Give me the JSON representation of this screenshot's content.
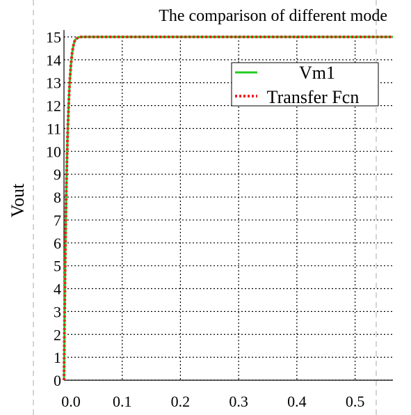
{
  "chart_data": {
    "type": "line",
    "title": "The comparison of different mode",
    "xlabel": "",
    "ylabel": "Vout",
    "xlim": [
      0,
      0.565
    ],
    "ylim": [
      0,
      15
    ],
    "x_ticks": [
      "0.0",
      "0.1",
      "0.2",
      "0.3",
      "0.4",
      "0.5"
    ],
    "x_tick_values": [
      0,
      0.1,
      0.2,
      0.3,
      0.4,
      0.5
    ],
    "y_ticks": [
      "0",
      "1",
      "2",
      "3",
      "4",
      "5",
      "6",
      "7",
      "8",
      "9",
      "10",
      "11",
      "12",
      "13",
      "14",
      "15"
    ],
    "y_tick_values": [
      0,
      1,
      2,
      3,
      4,
      5,
      6,
      7,
      8,
      9,
      10,
      11,
      12,
      13,
      14,
      15
    ],
    "grid": true,
    "legend_position": "top-right",
    "series": [
      {
        "name": "Vm1",
        "color": "#22cc22",
        "style": "solid",
        "x": [
          0,
          0.001,
          0.002,
          0.003,
          0.004,
          0.005,
          0.006,
          0.007,
          0.008,
          0.009,
          0.01,
          0.012,
          0.014,
          0.016,
          0.018,
          0.02,
          0.025,
          0.03,
          0.05,
          0.1,
          0.2,
          0.3,
          0.4,
          0.5,
          0.565
        ],
        "y": [
          0,
          2.8,
          5.0,
          6.8,
          8.3,
          9.5,
          10.5,
          11.3,
          12.0,
          12.6,
          13.1,
          13.8,
          14.3,
          14.6,
          14.8,
          14.9,
          14.98,
          15.0,
          15.0,
          15.0,
          15.0,
          15.0,
          15.0,
          15.0,
          15.0
        ]
      },
      {
        "name": "Transfer Fcn",
        "color": "#ee2222",
        "style": "dotted",
        "x": [
          0,
          0.001,
          0.002,
          0.003,
          0.004,
          0.005,
          0.006,
          0.007,
          0.008,
          0.009,
          0.01,
          0.012,
          0.014,
          0.016,
          0.018,
          0.02,
          0.025,
          0.03,
          0.05,
          0.1,
          0.2,
          0.3,
          0.4,
          0.5,
          0.565
        ],
        "y": [
          0,
          2.8,
          5.0,
          6.8,
          8.3,
          9.5,
          10.5,
          11.3,
          12.0,
          12.6,
          13.1,
          13.8,
          14.3,
          14.6,
          14.8,
          14.9,
          14.98,
          15.0,
          15.0,
          15.0,
          15.0,
          15.0,
          15.0,
          15.0,
          15.0
        ]
      }
    ]
  }
}
